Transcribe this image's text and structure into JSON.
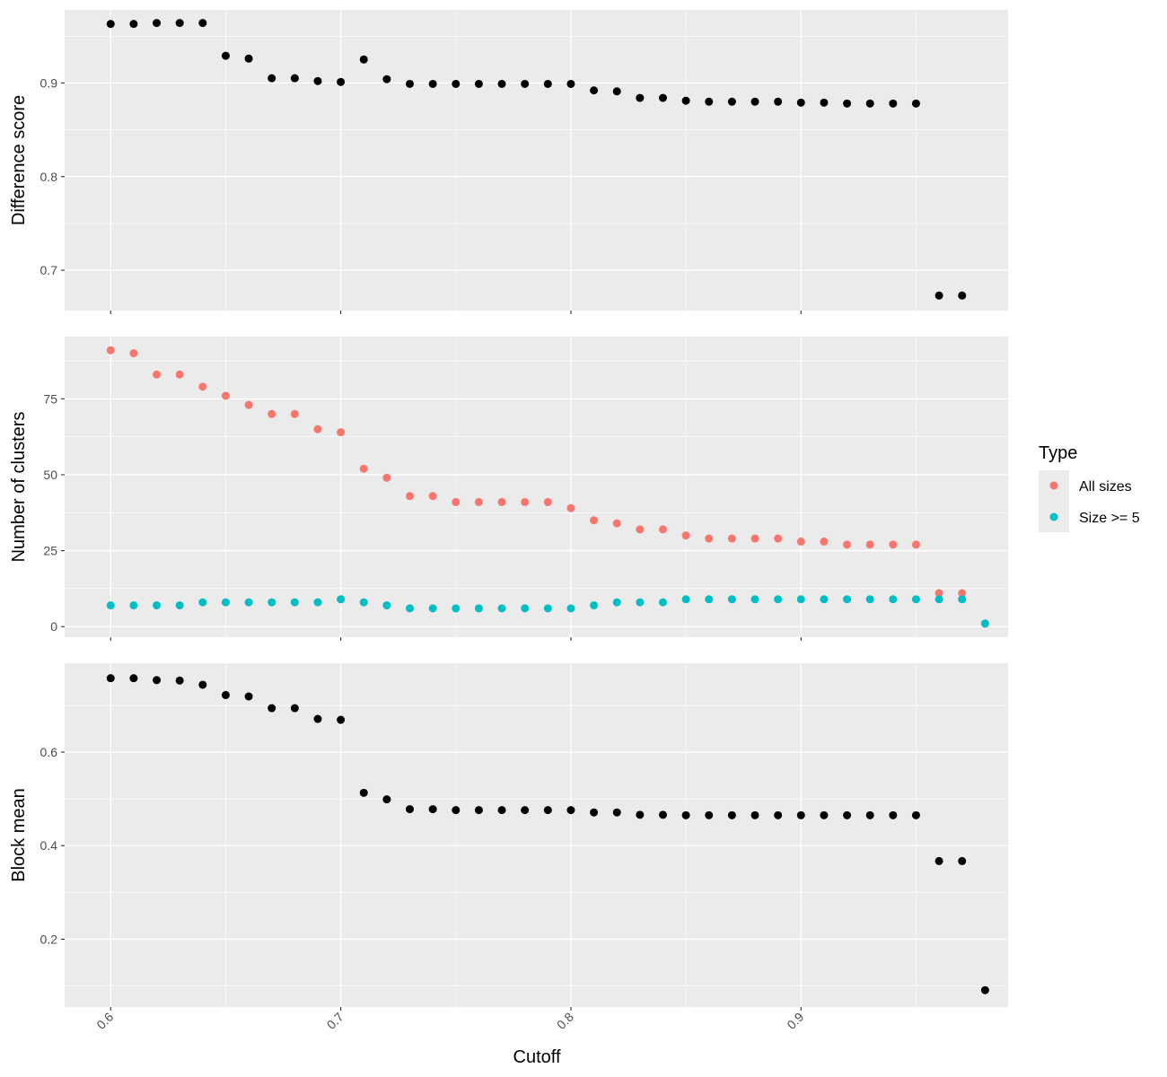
{
  "chart_data": {
    "type": "scatter",
    "xlabel": "Cutoff",
    "xlim": [
      0.58,
      0.99
    ],
    "xticks": [
      0.6,
      0.7,
      0.8,
      0.9
    ],
    "xtick_labels": [
      "0.6",
      "0.7",
      "0.8",
      "0.9"
    ],
    "grid": true,
    "legend": {
      "title": "Type",
      "placement": "right",
      "entries": [
        {
          "label": "All sizes",
          "color": "#F8766D"
        },
        {
          "label": "Size >= 5",
          "color": "#00BFC4"
        }
      ]
    },
    "panels": [
      {
        "ylabel": "Difference score",
        "ylim": [
          0.657,
          0.978
        ],
        "yticks": [
          0.7,
          0.8,
          0.9
        ],
        "ytick_labels": [
          "0.7",
          "0.8",
          "0.9"
        ],
        "series": [
          {
            "color": "#000000",
            "x": [
              0.6,
              0.61,
              0.62,
              0.63,
              0.64,
              0.65,
              0.66,
              0.67,
              0.68,
              0.69,
              0.7,
              0.71,
              0.72,
              0.73,
              0.74,
              0.75,
              0.76,
              0.77,
              0.78,
              0.79,
              0.8,
              0.81,
              0.82,
              0.83,
              0.84,
              0.85,
              0.86,
              0.87,
              0.88,
              0.89,
              0.9,
              0.91,
              0.92,
              0.93,
              0.94,
              0.95,
              0.96,
              0.97
            ],
            "y": [
              0.963,
              0.963,
              0.964,
              0.964,
              0.964,
              0.929,
              0.926,
              0.905,
              0.905,
              0.902,
              0.901,
              0.925,
              0.904,
              0.899,
              0.899,
              0.899,
              0.899,
              0.899,
              0.899,
              0.899,
              0.899,
              0.892,
              0.891,
              0.884,
              0.884,
              0.881,
              0.88,
              0.88,
              0.88,
              0.88,
              0.879,
              0.879,
              0.878,
              0.878,
              0.878,
              0.878,
              0.673,
              0.673
            ]
          }
        ]
      },
      {
        "ylabel": "Number of clusters",
        "ylim": [
          -3.5,
          95.5
        ],
        "yticks": [
          0,
          25,
          50,
          75
        ],
        "ytick_labels": [
          "0",
          "25",
          "50",
          "75"
        ],
        "series": [
          {
            "name": "All sizes",
            "color": "#F8766D",
            "x": [
              0.6,
              0.61,
              0.62,
              0.63,
              0.64,
              0.65,
              0.66,
              0.67,
              0.68,
              0.69,
              0.7,
              0.71,
              0.72,
              0.73,
              0.74,
              0.75,
              0.76,
              0.77,
              0.78,
              0.79,
              0.8,
              0.81,
              0.82,
              0.83,
              0.84,
              0.85,
              0.86,
              0.87,
              0.88,
              0.89,
              0.9,
              0.91,
              0.92,
              0.93,
              0.94,
              0.95,
              0.96,
              0.97,
              0.98
            ],
            "y": [
              91,
              90,
              83,
              83,
              79,
              76,
              73,
              70,
              70,
              65,
              64,
              52,
              49,
              43,
              43,
              41,
              41,
              41,
              41,
              41,
              39,
              35,
              34,
              32,
              32,
              30,
              29,
              29,
              29,
              29,
              28,
              28,
              27,
              27,
              27,
              27,
              11,
              11,
              1
            ]
          },
          {
            "name": "Size >= 5",
            "color": "#00BFC4",
            "x": [
              0.6,
              0.61,
              0.62,
              0.63,
              0.64,
              0.65,
              0.66,
              0.67,
              0.68,
              0.69,
              0.7,
              0.71,
              0.72,
              0.73,
              0.74,
              0.75,
              0.76,
              0.77,
              0.78,
              0.79,
              0.8,
              0.81,
              0.82,
              0.83,
              0.84,
              0.85,
              0.86,
              0.87,
              0.88,
              0.89,
              0.9,
              0.91,
              0.92,
              0.93,
              0.94,
              0.95,
              0.96,
              0.97,
              0.98
            ],
            "y": [
              7,
              7,
              7,
              7,
              8,
              8,
              8,
              8,
              8,
              8,
              9,
              8,
              7,
              6,
              6,
              6,
              6,
              6,
              6,
              6,
              6,
              7,
              8,
              8,
              8,
              9,
              9,
              9,
              9,
              9,
              9,
              9,
              9,
              9,
              9,
              9,
              9,
              9,
              1
            ]
          }
        ]
      },
      {
        "ylabel": "Block mean",
        "ylim": [
          0.055,
          0.79
        ],
        "yticks": [
          0.2,
          0.4,
          0.6
        ],
        "ytick_labels": [
          "0.2",
          "0.4",
          "0.6"
        ],
        "series": [
          {
            "color": "#000000",
            "x": [
              0.6,
              0.61,
              0.62,
              0.63,
              0.64,
              0.65,
              0.66,
              0.67,
              0.68,
              0.69,
              0.7,
              0.71,
              0.72,
              0.73,
              0.74,
              0.75,
              0.76,
              0.77,
              0.78,
              0.79,
              0.8,
              0.81,
              0.82,
              0.83,
              0.84,
              0.85,
              0.86,
              0.87,
              0.88,
              0.89,
              0.9,
              0.91,
              0.92,
              0.93,
              0.94,
              0.95,
              0.96,
              0.97,
              0.98
            ],
            "y": [
              0.758,
              0.758,
              0.754,
              0.753,
              0.744,
              0.722,
              0.719,
              0.694,
              0.694,
              0.671,
              0.669,
              0.513,
              0.499,
              0.478,
              0.478,
              0.476,
              0.476,
              0.476,
              0.476,
              0.476,
              0.476,
              0.471,
              0.471,
              0.466,
              0.466,
              0.465,
              0.465,
              0.465,
              0.465,
              0.465,
              0.465,
              0.465,
              0.465,
              0.465,
              0.465,
              0.465,
              0.367,
              0.367,
              0.091
            ]
          }
        ]
      }
    ]
  }
}
